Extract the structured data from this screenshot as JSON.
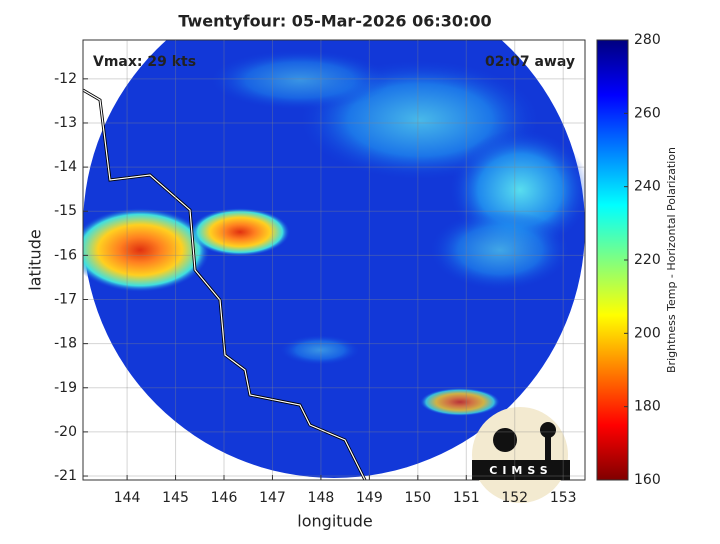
{
  "chart_data": {
    "type": "map",
    "title": "Twentyfour: 05-Mar-2026 06:30:00",
    "xlabel": "longitude",
    "ylabel": "latitude",
    "xlim": [
      143.09,
      153.45
    ],
    "ylim": [
      -21.09,
      -11.12
    ],
    "xticks": [
      144,
      145,
      146,
      147,
      148,
      149,
      150,
      151,
      152,
      153
    ],
    "yticks": [
      -21,
      -20,
      -19,
      -18,
      -17,
      -16,
      -15,
      -14,
      -13,
      -12
    ],
    "grid": true,
    "annotations": [
      "Vmax: 29 kts",
      "02:07 away"
    ],
    "logo": "CIMSS",
    "colorbar": {
      "label": "Brightness Temp - Horizontal Polarization",
      "lim": [
        160,
        280
      ],
      "ticks": [
        160,
        180,
        200,
        220,
        240,
        260,
        280
      ]
    }
  }
}
